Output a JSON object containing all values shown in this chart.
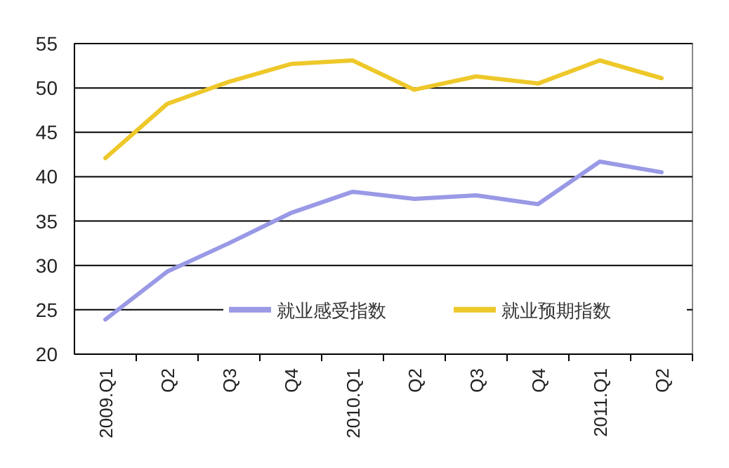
{
  "chart_data": {
    "type": "line",
    "categories": [
      "2009.Q1",
      "Q2",
      "Q3",
      "Q4",
      "2010.Q1",
      "Q2",
      "Q3",
      "Q4",
      "2011.Q1",
      "Q2"
    ],
    "series": [
      {
        "name": "就业感受指数",
        "color": "#9999e6",
        "values": [
          23.9,
          29.3,
          32.5,
          35.9,
          38.3,
          37.5,
          37.9,
          36.9,
          41.7,
          40.5
        ]
      },
      {
        "name": "就业预期指数",
        "color": "#eec82a",
        "values": [
          42.1,
          48.2,
          50.7,
          52.7,
          53.1,
          49.8,
          51.3,
          50.5,
          53.1,
          51.1
        ]
      }
    ],
    "ylim": [
      20,
      55
    ],
    "yticks": [
      20,
      25,
      30,
      35,
      40,
      45,
      50,
      55
    ],
    "grid": "y",
    "legend": "bottom",
    "marker": "none",
    "line_style": "solid"
  }
}
